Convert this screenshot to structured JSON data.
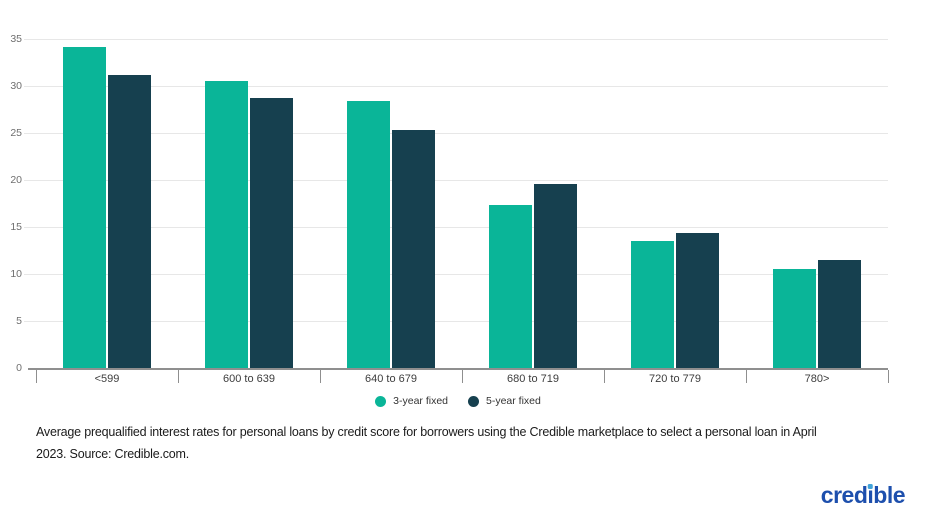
{
  "chart_data": {
    "type": "bar",
    "title": "",
    "categories": [
      "<599",
      "600 to 639",
      "640 to 679",
      "680 to 719",
      "720 to 779",
      "780>"
    ],
    "series": [
      {
        "name": "3-year fixed",
        "color": "#0ab598",
        "values": [
          34.2,
          30.5,
          28.4,
          17.3,
          13.5,
          10.5
        ]
      },
      {
        "name": "5-year fixed",
        "color": "#16404f",
        "values": [
          31.2,
          28.7,
          25.3,
          19.6,
          14.4,
          11.5
        ]
      }
    ],
    "xlabel": "",
    "ylabel": "",
    "ylim": [
      0,
      35
    ],
    "yticks": [
      0,
      5,
      10,
      15,
      20,
      25,
      30,
      35
    ],
    "grid": true,
    "legend_position": "bottom"
  },
  "caption": {
    "full_text": "Average prequalified interest rates for personal loans by credit score for borrowers using the Credible marketplace to select a personal loan in April 2023. Source: Credible.com.",
    "line1": "Average prequalified interest rates for personal loans by credit score for borrowers using the Credible marketplace to select a personal loan in April",
    "line2": "2023. Source: Credible.com."
  },
  "brand": {
    "part1": "cred",
    "i_stem": "ı",
    "part2": "ble"
  },
  "colors": {
    "series_teal": "#0ab598",
    "series_navy": "#16404f",
    "gridline": "#e7e7e7",
    "axis": "#8f8f8f",
    "y_label": "#6f6f6f",
    "x_label": "#3d3d3d",
    "caption_text": "#1b1b1b",
    "logo_text": "#1d4fad",
    "logo_dot": "#41a3d9"
  }
}
